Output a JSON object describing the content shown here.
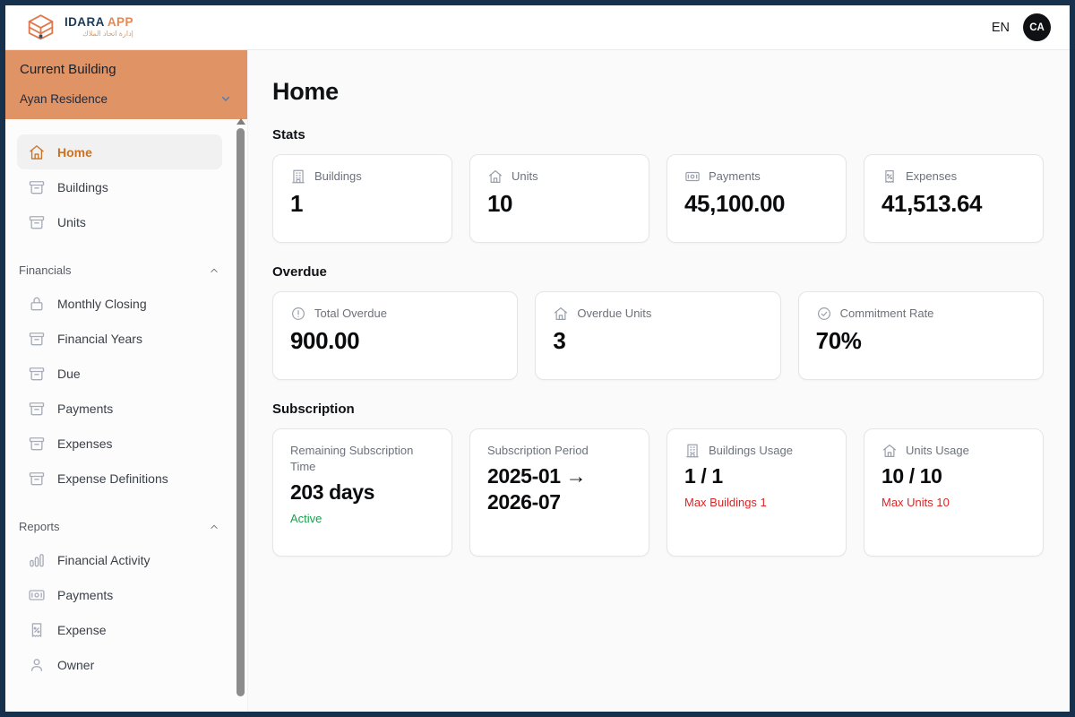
{
  "brand": {
    "name": "IDARA",
    "name_accent": "APP",
    "tagline": "إدارة اتحاد الملاك"
  },
  "topbar": {
    "language": "EN",
    "avatar_initials": "CA"
  },
  "colors": {
    "frame_navy": "#17314d",
    "selector_orange": "#e09365",
    "active_orange": "#c87326",
    "status_green": "#18a24b",
    "status_red": "#dc2626"
  },
  "sidebar": {
    "building_selector": {
      "label": "Current Building",
      "value": "Ayan Residence",
      "icon": "chevron-down"
    },
    "sections": [
      {
        "header": "",
        "collapse_icon": "",
        "items": [
          {
            "label": "Home",
            "icon": "home",
            "active": true
          },
          {
            "label": "Buildings",
            "icon": "archive-box",
            "active": false
          },
          {
            "label": "Units",
            "icon": "archive-box",
            "active": false
          }
        ]
      },
      {
        "header": "Financials",
        "collapse_icon": "chevron-up",
        "items": [
          {
            "label": "Monthly Closing",
            "icon": "lock",
            "active": false
          },
          {
            "label": "Financial Years",
            "icon": "archive-box",
            "active": false
          },
          {
            "label": "Due",
            "icon": "archive-box",
            "active": false
          },
          {
            "label": "Payments",
            "icon": "archive-box",
            "active": false
          },
          {
            "label": "Expenses",
            "icon": "archive-box",
            "active": false
          },
          {
            "label": "Expense Definitions",
            "icon": "archive-box",
            "active": false
          }
        ]
      },
      {
        "header": "Reports",
        "collapse_icon": "chevron-up",
        "items": [
          {
            "label": "Financial Activity",
            "icon": "bar-chart",
            "active": false
          },
          {
            "label": "Payments",
            "icon": "banknote",
            "active": false
          },
          {
            "label": "Expense",
            "icon": "receipt-percent",
            "active": false
          },
          {
            "label": "Owner",
            "icon": "user",
            "active": false
          }
        ]
      }
    ]
  },
  "main": {
    "title": "Home",
    "sections": [
      {
        "heading": "Stats",
        "columns": 4,
        "tall": false,
        "cards": [
          {
            "icon": "building",
            "label": "Buildings",
            "value": "1",
            "note": "",
            "note_color": ""
          },
          {
            "icon": "home",
            "label": "Units",
            "value": "10",
            "note": "",
            "note_color": ""
          },
          {
            "icon": "banknote",
            "label": "Payments",
            "value": "45,100.00",
            "note": "",
            "note_color": ""
          },
          {
            "icon": "receipt-percent",
            "label": "Expenses",
            "value": "41,513.64",
            "note": "",
            "note_color": ""
          }
        ]
      },
      {
        "heading": "Overdue",
        "columns": 3,
        "tall": false,
        "cards": [
          {
            "icon": "alert-circle",
            "label": "Total Overdue",
            "value": "900.00",
            "note": "",
            "note_color": ""
          },
          {
            "icon": "home",
            "label": "Overdue Units",
            "value": "3",
            "note": "",
            "note_color": ""
          },
          {
            "icon": "check-circle",
            "label": "Commitment Rate",
            "value": "70%",
            "note": "",
            "note_color": ""
          }
        ]
      },
      {
        "heading": "Subscription",
        "columns": 4,
        "tall": true,
        "cards": [
          {
            "icon": "",
            "label": "Remaining Subscription Time",
            "value": "203 days",
            "note": "Active",
            "note_color": "green"
          },
          {
            "icon": "",
            "label": "Subscription Period",
            "value": "2025-01 → 2026-07",
            "note": "",
            "note_color": ""
          },
          {
            "icon": "building",
            "label": "Buildings Usage",
            "value": "1 / 1",
            "note": "Max Buildings 1",
            "note_color": "red"
          },
          {
            "icon": "home",
            "label": "Units Usage",
            "value": "10 / 10",
            "note": "Max Units 10",
            "note_color": "red"
          }
        ]
      }
    ]
  }
}
